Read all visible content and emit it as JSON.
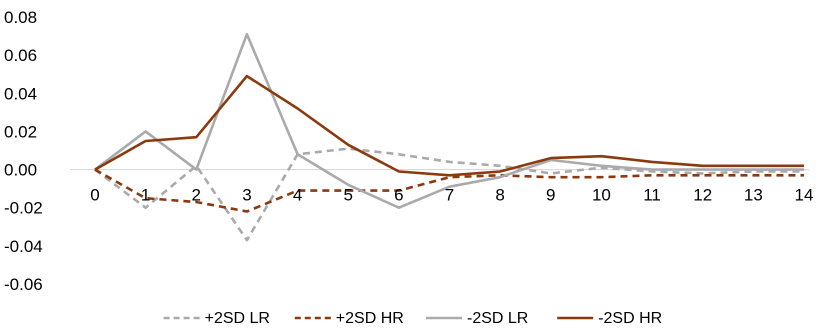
{
  "chart_data": {
    "type": "line",
    "title": "",
    "xlabel": "",
    "ylabel": "",
    "x": [
      0,
      1,
      2,
      3,
      4,
      5,
      6,
      7,
      8,
      9,
      10,
      11,
      12,
      13,
      14
    ],
    "x_tick_labels": [
      "0",
      "1",
      "2",
      "3",
      "4",
      "5",
      "6",
      "7",
      "8",
      "9",
      "10",
      "11",
      "12",
      "13",
      "14"
    ],
    "ylim": [
      -0.06,
      0.08
    ],
    "y_tick_labels": [
      "0.08",
      "0.06",
      "0.04",
      "0.02",
      "0.00",
      "-0.02",
      "-0.04",
      "-0.06"
    ],
    "y_ticks": [
      0.08,
      0.06,
      0.04,
      0.02,
      0.0,
      -0.02,
      -0.04,
      -0.06
    ],
    "grid": false,
    "legend_position": "bottom",
    "series": [
      {
        "name": "+2SD LR",
        "color": "#aaaaaa",
        "dashed": true,
        "values": [
          0.0,
          -0.02,
          0.002,
          -0.037,
          0.008,
          0.011,
          0.008,
          0.004,
          0.002,
          -0.002,
          0.001,
          -0.001,
          -0.002,
          -0.001,
          -0.001
        ]
      },
      {
        "name": "+2SD HR",
        "color": "#8b3a0f",
        "dashed": true,
        "values": [
          0.0,
          -0.015,
          -0.017,
          -0.022,
          -0.011,
          -0.011,
          -0.011,
          -0.004,
          -0.003,
          -0.004,
          -0.004,
          -0.003,
          -0.003,
          -0.003,
          -0.003
        ]
      },
      {
        "name": "-2SD LR",
        "color": "#aaaaaa",
        "dashed": false,
        "values": [
          0.0,
          0.02,
          0.0,
          0.071,
          0.008,
          -0.008,
          -0.02,
          -0.009,
          -0.004,
          0.005,
          0.002,
          0.0,
          0.0,
          0.0,
          0.0
        ]
      },
      {
        "name": "-2SD HR",
        "color": "#8b3a0f",
        "dashed": false,
        "values": [
          0.0,
          0.015,
          0.017,
          0.049,
          0.032,
          0.013,
          -0.001,
          -0.003,
          -0.001,
          0.006,
          0.007,
          0.004,
          0.002,
          0.002,
          0.002
        ]
      }
    ]
  }
}
